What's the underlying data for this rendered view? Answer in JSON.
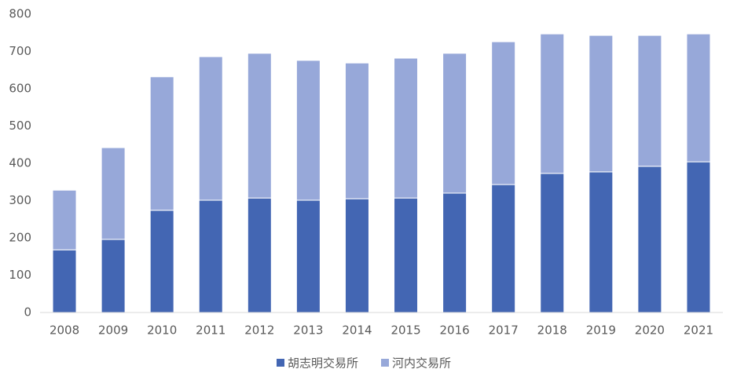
{
  "chart_data": {
    "type": "stacked_bar",
    "categories": [
      "2008",
      "2009",
      "2010",
      "2011",
      "2012",
      "2013",
      "2014",
      "2015",
      "2016",
      "2017",
      "2018",
      "2019",
      "2020",
      "2021"
    ],
    "series": [
      {
        "name": "胡志明交易所",
        "color": "#4366b3",
        "values": [
          168,
          196,
          274,
          301,
          307,
          301,
          305,
          307,
          320,
          343,
          373,
          377,
          392,
          404
        ]
      },
      {
        "name": "河内交易所",
        "color": "#97a8d9",
        "values": [
          160,
          246,
          358,
          385,
          388,
          375,
          364,
          375,
          375,
          383,
          374,
          366,
          351,
          343
        ]
      }
    ],
    "ylim": [
      0,
      800
    ],
    "yticks": [
      0,
      100,
      200,
      300,
      400,
      500,
      600,
      700,
      800
    ],
    "grid": false,
    "legend": "bottom"
  }
}
